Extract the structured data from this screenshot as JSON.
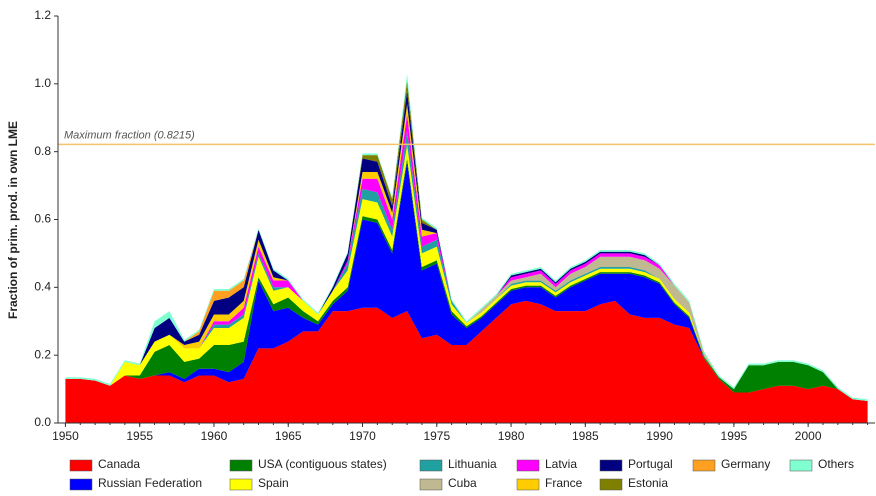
{
  "chart_data": {
    "type": "stacked-area",
    "y_label": "Fraction of prim. prod. in own LME",
    "x": [
      1950,
      1951,
      1952,
      1953,
      1954,
      1955,
      1956,
      1957,
      1958,
      1959,
      1960,
      1961,
      1962,
      1963,
      1964,
      1965,
      1966,
      1967,
      1968,
      1969,
      1970,
      1971,
      1972,
      1973,
      1974,
      1975,
      1976,
      1977,
      1978,
      1979,
      1980,
      1981,
      1982,
      1983,
      1984,
      1985,
      1986,
      1987,
      1988,
      1989,
      1990,
      1991,
      1992,
      1993,
      1994,
      1995,
      1996,
      1997,
      1998,
      1999,
      2000,
      2001,
      2002,
      2003,
      2004
    ],
    "xlim": [
      1949.5,
      2004.5
    ],
    "xticks": [
      1950,
      1955,
      1960,
      1965,
      1970,
      1975,
      1980,
      1985,
      1990,
      1995,
      2000
    ],
    "ylim": [
      0,
      1.2
    ],
    "yticks": [
      {
        "value": 0,
        "label": "0.0"
      },
      0.2,
      0.4,
      0.6,
      0.8,
      {
        "value": 1,
        "label": "1.0"
      },
      1.2
    ],
    "hline": {
      "value": 0.8215,
      "label": "Maximum fraction (0.8215)",
      "color": "#f5c46a"
    },
    "series": [
      {
        "name": "Canada",
        "color": "#ff0000",
        "values": [
          0.13,
          0.13,
          0.125,
          0.11,
          0.14,
          0.13,
          0.14,
          0.14,
          0.12,
          0.14,
          0.14,
          0.12,
          0.13,
          0.22,
          0.22,
          0.24,
          0.27,
          0.27,
          0.33,
          0.33,
          0.34,
          0.34,
          0.31,
          0.33,
          0.25,
          0.26,
          0.23,
          0.23,
          0.27,
          0.31,
          0.35,
          0.36,
          0.35,
          0.33,
          0.33,
          0.33,
          0.35,
          0.36,
          0.32,
          0.31,
          0.31,
          0.29,
          0.28,
          0.19,
          0.13,
          0.09,
          0.09,
          0.1,
          0.11,
          0.11,
          0.1,
          0.11,
          0.1,
          0.07,
          0.065
        ]
      },
      {
        "name": "Russian Federation",
        "color": "#0000ff",
        "values": [
          0,
          0,
          0,
          0,
          0,
          0,
          0,
          0.01,
          0.01,
          0.02,
          0.02,
          0.03,
          0.05,
          0.2,
          0.11,
          0.1,
          0.04,
          0.02,
          0.02,
          0.06,
          0.26,
          0.25,
          0.19,
          0.44,
          0.2,
          0.21,
          0.09,
          0.05,
          0.04,
          0.04,
          0.04,
          0.04,
          0.05,
          0.04,
          0.07,
          0.09,
          0.09,
          0.08,
          0.12,
          0.12,
          0.1,
          0.06,
          0.03,
          0,
          0,
          0,
          0,
          0,
          0,
          0,
          0,
          0,
          0,
          0,
          0
        ]
      },
      {
        "name": "USA (contiguous states)",
        "color": "#008000",
        "values": [
          0,
          0,
          0,
          0,
          0,
          0.01,
          0.07,
          0.08,
          0.05,
          0.03,
          0.07,
          0.08,
          0.06,
          0.01,
          0.02,
          0.03,
          0.02,
          0.01,
          0.01,
          0.01,
          0.01,
          0.01,
          0.01,
          0.01,
          0.01,
          0.01,
          0.01,
          0.005,
          0.005,
          0.005,
          0.005,
          0.005,
          0.005,
          0.005,
          0.005,
          0.005,
          0.005,
          0.005,
          0.005,
          0.005,
          0.005,
          0.005,
          0.005,
          0.005,
          0.005,
          0.01,
          0.08,
          0.07,
          0.07,
          0.07,
          0.07,
          0.04,
          0,
          0,
          0
        ]
      },
      {
        "name": "Spain",
        "color": "#ffff00",
        "values": [
          0,
          0,
          0,
          0,
          0.04,
          0.03,
          0.03,
          0.03,
          0.04,
          0.03,
          0.05,
          0.05,
          0.07,
          0.06,
          0.04,
          0.03,
          0.03,
          0.02,
          0.03,
          0.05,
          0.05,
          0.05,
          0.04,
          0.04,
          0.04,
          0.04,
          0.02,
          0.01,
          0.01,
          0.01,
          0.01,
          0.01,
          0.01,
          0.01,
          0.01,
          0.01,
          0.01,
          0.01,
          0.01,
          0.01,
          0.01,
          0.01,
          0.01,
          0,
          0,
          0,
          0,
          0,
          0,
          0,
          0,
          0,
          0,
          0,
          0
        ]
      },
      {
        "name": "Lithuania",
        "color": "#20a0a0",
        "values": [
          0,
          0,
          0,
          0,
          0,
          0,
          0,
          0,
          0,
          0,
          0.01,
          0.01,
          0.01,
          0.01,
          0.01,
          0,
          0,
          0,
          0,
          0.02,
          0.03,
          0.03,
          0.02,
          0.04,
          0.02,
          0.02,
          0.01,
          0,
          0,
          0,
          0.005,
          0.005,
          0.005,
          0.005,
          0.005,
          0.005,
          0.005,
          0.005,
          0.005,
          0.005,
          0,
          0,
          0,
          0,
          0,
          0,
          0,
          0,
          0,
          0,
          0,
          0,
          0,
          0,
          0
        ]
      },
      {
        "name": "Cuba",
        "color": "#c0b890",
        "values": [
          0,
          0,
          0,
          0,
          0,
          0,
          0,
          0,
          0,
          0,
          0,
          0,
          0,
          0,
          0,
          0,
          0,
          0,
          0,
          0,
          0,
          0,
          0,
          0,
          0,
          0,
          0,
          0,
          0.01,
          0.01,
          0.01,
          0.01,
          0.02,
          0.01,
          0.02,
          0.02,
          0.03,
          0.03,
          0.03,
          0.03,
          0.03,
          0.04,
          0.03,
          0.01,
          0,
          0,
          0,
          0,
          0,
          0,
          0,
          0,
          0,
          0,
          0
        ]
      },
      {
        "name": "Latvia",
        "color": "#ff00ff",
        "values": [
          0,
          0,
          0,
          0,
          0,
          0,
          0,
          0,
          0,
          0,
          0.01,
          0.01,
          0.02,
          0.02,
          0.02,
          0.02,
          0,
          0,
          0,
          0.01,
          0.03,
          0.04,
          0.03,
          0.05,
          0.03,
          0.02,
          0,
          0,
          0,
          0,
          0.01,
          0.01,
          0.01,
          0.01,
          0.01,
          0.01,
          0.01,
          0.01,
          0.01,
          0.01,
          0.01,
          0,
          0,
          0,
          0,
          0,
          0,
          0,
          0,
          0,
          0,
          0,
          0,
          0,
          0
        ]
      },
      {
        "name": "France",
        "color": "#ffcc00",
        "values": [
          0,
          0,
          0,
          0,
          0,
          0,
          0,
          0,
          0.01,
          0.02,
          0.02,
          0.02,
          0.02,
          0.02,
          0.01,
          0,
          0,
          0,
          0,
          0,
          0.02,
          0.02,
          0.02,
          0.03,
          0.02,
          0,
          0,
          0,
          0,
          0,
          0,
          0,
          0,
          0,
          0,
          0,
          0,
          0,
          0,
          0,
          0,
          0,
          0,
          0,
          0,
          0,
          0,
          0,
          0,
          0,
          0,
          0,
          0,
          0,
          0
        ]
      },
      {
        "name": "Portugal",
        "color": "#000080",
        "values": [
          0,
          0,
          0,
          0,
          0,
          0,
          0.04,
          0.05,
          0.01,
          0.02,
          0.04,
          0.05,
          0.04,
          0.03,
          0.02,
          0,
          0,
          0,
          0.01,
          0.02,
          0.04,
          0.03,
          0.02,
          0.04,
          0.02,
          0.01,
          0,
          0,
          0,
          0,
          0.005,
          0.005,
          0.005,
          0.005,
          0.005,
          0.005,
          0.005,
          0.005,
          0.005,
          0.005,
          0,
          0,
          0,
          0,
          0,
          0,
          0,
          0,
          0,
          0,
          0,
          0,
          0,
          0,
          0
        ]
      },
      {
        "name": "Estonia",
        "color": "#808000",
        "values": [
          0,
          0,
          0,
          0,
          0,
          0,
          0,
          0,
          0,
          0,
          0,
          0,
          0,
          0,
          0,
          0,
          0,
          0,
          0,
          0,
          0.01,
          0.02,
          0.02,
          0.03,
          0.01,
          0,
          0,
          0,
          0,
          0,
          0,
          0,
          0,
          0,
          0,
          0,
          0,
          0,
          0,
          0,
          0,
          0,
          0,
          0,
          0,
          0,
          0,
          0,
          0,
          0,
          0,
          0,
          0,
          0,
          0
        ]
      },
      {
        "name": "Germany",
        "color": "#ffa020",
        "values": [
          0,
          0,
          0,
          0,
          0,
          0,
          0,
          0,
          0,
          0.01,
          0.03,
          0.02,
          0.02,
          0,
          0,
          0,
          0,
          0,
          0,
          0,
          0,
          0,
          0,
          0,
          0,
          0,
          0,
          0,
          0,
          0,
          0,
          0,
          0,
          0,
          0,
          0,
          0,
          0,
          0,
          0,
          0,
          0,
          0,
          0,
          0,
          0,
          0,
          0,
          0,
          0,
          0,
          0,
          0,
          0,
          0
        ]
      },
      {
        "name": "Others",
        "color": "#80ffd0",
        "values": [
          0.005,
          0.005,
          0.005,
          0.005,
          0.005,
          0.005,
          0.02,
          0.02,
          0.005,
          0.005,
          0.005,
          0.005,
          0.005,
          0.005,
          0.005,
          0.005,
          0.005,
          0.005,
          0.005,
          0.005,
          0.005,
          0.005,
          0.005,
          0.02,
          0.005,
          0.005,
          0.005,
          0.005,
          0.005,
          0.005,
          0.005,
          0.005,
          0.005,
          0.005,
          0.005,
          0.005,
          0.005,
          0.005,
          0.005,
          0.005,
          0.005,
          0.005,
          0.005,
          0.005,
          0.005,
          0.005,
          0.005,
          0.005,
          0.005,
          0.005,
          0.005,
          0.005,
          0.005,
          0.005,
          0.005
        ]
      }
    ]
  }
}
